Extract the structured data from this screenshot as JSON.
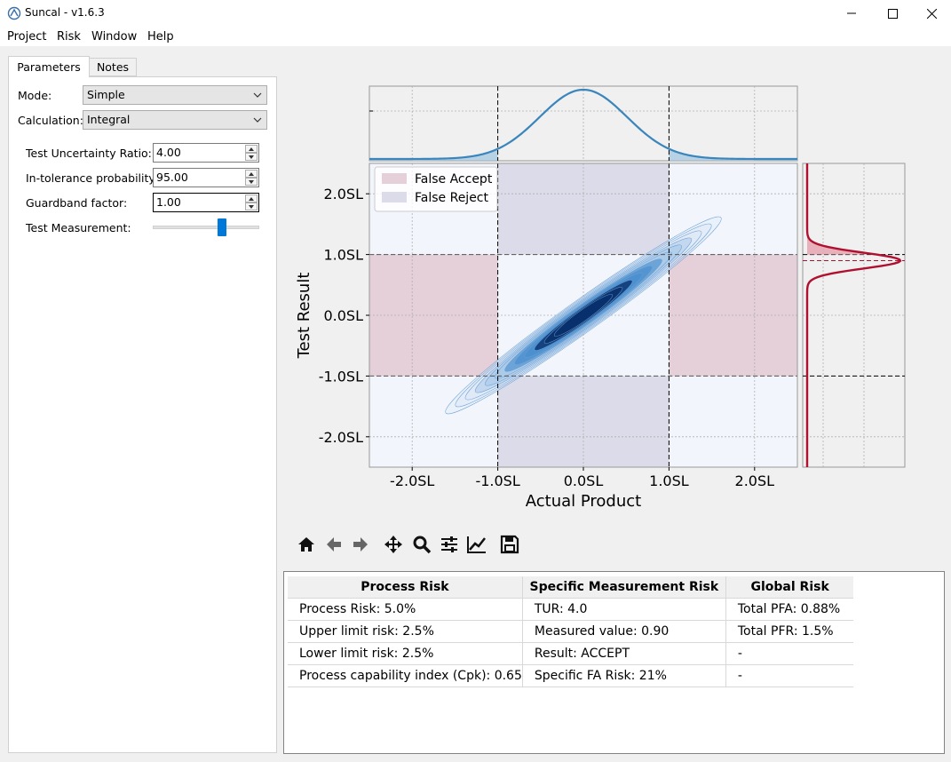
{
  "window": {
    "title": "Suncal - v1.6.3"
  },
  "menu": [
    "Project",
    "Risk",
    "Window",
    "Help"
  ],
  "tabs": [
    "Parameters",
    "Notes"
  ],
  "params": {
    "mode_label": "Mode:",
    "mode_value": "Simple",
    "calc_label": "Calculation:",
    "calc_value": "Integral",
    "tur_label": "Test Uncertainty Ratio:",
    "tur_value": "4.00",
    "itp_label": "In-tolerance probability:",
    "itp_value": "95.00",
    "gb_label": "Guardband factor:",
    "gb_value": "1.00",
    "tm_label": "Test Measurement:",
    "tm_slider_fraction": 0.65
  },
  "chart_data": {
    "type": "contour",
    "xlabel": "Actual Product",
    "ylabel": "Test Result",
    "xlim": [
      -2.5,
      2.5
    ],
    "ylim": [
      -2.5,
      2.5
    ],
    "xticks": [
      "-2.0SL",
      "-1.0SL",
      "0.0SL",
      "1.0SL",
      "2.0SL"
    ],
    "yticks": [
      "2.0SL",
      "1.0SL",
      "0.0SL",
      "-1.0SL",
      "-2.0SL"
    ],
    "spec_limits": [
      -1.0,
      1.0
    ],
    "test_measurement": 0.9,
    "legend": [
      "False Accept",
      "False Reject"
    ],
    "legend_position": "top-left",
    "colors": {
      "false_accept": "#e5cfd9",
      "false_reject": "#dcdbe9",
      "product_pdf": "#3a85bb",
      "measurement_pdf": "#b01030",
      "contour_dark": "#08306b",
      "contour_light": "#a6c8e8",
      "background": "#f2f6fc"
    },
    "grid": true
  },
  "toolbar": [
    "home-icon",
    "back-icon",
    "forward-icon",
    "pan-icon",
    "zoom-icon",
    "configure-icon",
    "edit-curves-icon",
    "save-icon"
  ],
  "results": {
    "headers": [
      "Process Risk",
      "Specific Measurement Risk",
      "Global Risk"
    ],
    "rows": [
      [
        "Process Risk: 5.0%",
        "TUR: 4.0",
        "Total PFA: 0.88%"
      ],
      [
        "Upper limit risk: 2.5%",
        "Measured value: 0.90",
        "Total PFR: 1.5%"
      ],
      [
        "Lower limit risk: 2.5%",
        "Result: ACCEPT",
        "-"
      ],
      [
        "Process capability index (Cpk): 0.65",
        "Specific FA Risk: 21%",
        "-"
      ]
    ]
  }
}
